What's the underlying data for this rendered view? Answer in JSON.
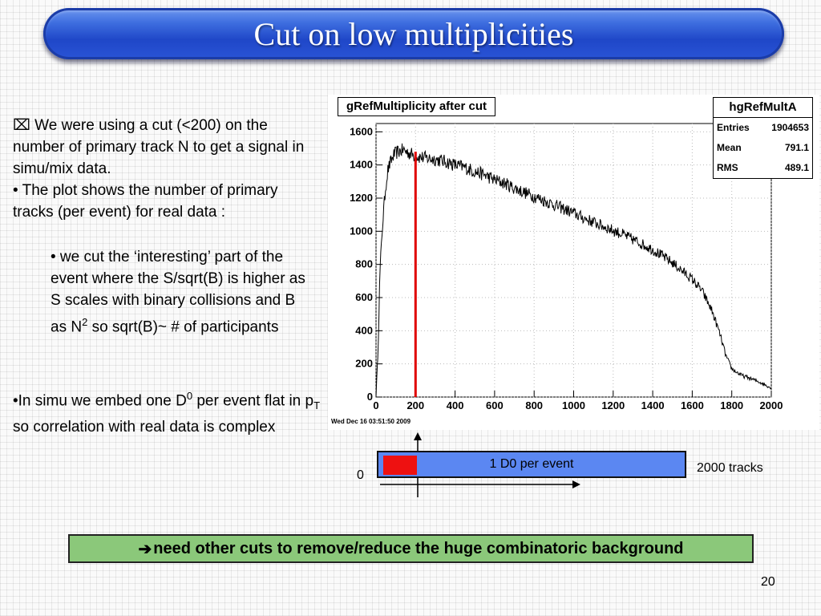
{
  "slide": {
    "title": "Cut on low multiplicities",
    "page_number": "20"
  },
  "text": {
    "b1_marker": "⌧",
    "b1": " We were using a cut (<200) on the number of primary track N to get a signal in simu/mix data.",
    "b2_marker": "•",
    "b2": " The plot shows the number of primary tracks (per event) for real data :",
    "b3_marker": "•",
    "b3_a": " we cut the ‘interesting’ part of the event where the S/sqrt(B) is higher as S scales with binary collisions and B as N",
    "b3_sup": "2",
    "b3_b": " so sqrt(B)~ # of participants",
    "b4_marker": "•",
    "b4_a": "In simu we embed one D",
    "b4_sup": "0",
    "b4_b": " per event flat in p",
    "b4_sub": "T",
    "b4_c": " so correlation with real data is complex"
  },
  "chart_data": {
    "type": "histogram",
    "title": "gRefMultiplicity after cut",
    "xlim": [
      0,
      2000
    ],
    "ylim": [
      0,
      1650
    ],
    "x_ticks": [
      "0",
      "200",
      "400",
      "600",
      "800",
      "1000",
      "1200",
      "1400",
      "1600",
      "1800",
      "2000"
    ],
    "y_ticks": [
      "0",
      "200",
      "400",
      "600",
      "800",
      "1000",
      "1200",
      "1400",
      "1600"
    ],
    "shape_points": [
      [
        0,
        0
      ],
      [
        10,
        280
      ],
      [
        20,
        760
      ],
      [
        30,
        980
      ],
      [
        40,
        1150
      ],
      [
        50,
        1280
      ],
      [
        60,
        1370
      ],
      [
        75,
        1420
      ],
      [
        90,
        1460
      ],
      [
        110,
        1480
      ],
      [
        140,
        1490
      ],
      [
        170,
        1470
      ],
      [
        210,
        1450
      ],
      [
        260,
        1440
      ],
      [
        300,
        1435
      ],
      [
        350,
        1420
      ],
      [
        400,
        1400
      ],
      [
        450,
        1385
      ],
      [
        500,
        1360
      ],
      [
        550,
        1340
      ],
      [
        600,
        1310
      ],
      [
        650,
        1290
      ],
      [
        700,
        1260
      ],
      [
        750,
        1235
      ],
      [
        800,
        1210
      ],
      [
        850,
        1185
      ],
      [
        900,
        1160
      ],
      [
        950,
        1135
      ],
      [
        1000,
        1110
      ],
      [
        1050,
        1080
      ],
      [
        1100,
        1055
      ],
      [
        1150,
        1030
      ],
      [
        1200,
        1005
      ],
      [
        1250,
        980
      ],
      [
        1300,
        950
      ],
      [
        1350,
        920
      ],
      [
        1400,
        890
      ],
      [
        1450,
        850
      ],
      [
        1500,
        810
      ],
      [
        1550,
        760
      ],
      [
        1600,
        710
      ],
      [
        1650,
        640
      ],
      [
        1700,
        520
      ],
      [
        1740,
        380
      ],
      [
        1770,
        250
      ],
      [
        1800,
        170
      ],
      [
        1850,
        130
      ],
      [
        1900,
        110
      ],
      [
        1950,
        85
      ],
      [
        2000,
        55
      ]
    ],
    "cut_line_x": 200,
    "cut_line_color": "#e00000",
    "stats": {
      "name": "hgRefMultA",
      "entries_label": "Entries",
      "entries": "1904653",
      "mean_label": "Mean",
      "mean": "791.1",
      "rms_label": "RMS",
      "rms": "489.1"
    },
    "datestamp": "Wed Dec 16 03:51:50 2009"
  },
  "diagram": {
    "bar_label": "1 D0 per event",
    "left_label": "0",
    "right_label": "2000 tracks",
    "bar_color": "#5b87f2",
    "highlight_color": "#ee1111"
  },
  "conclusion": {
    "arrow": "➔",
    "text": "need other cuts to remove/reduce the huge combinatoric background",
    "color": "#8bc87a"
  }
}
